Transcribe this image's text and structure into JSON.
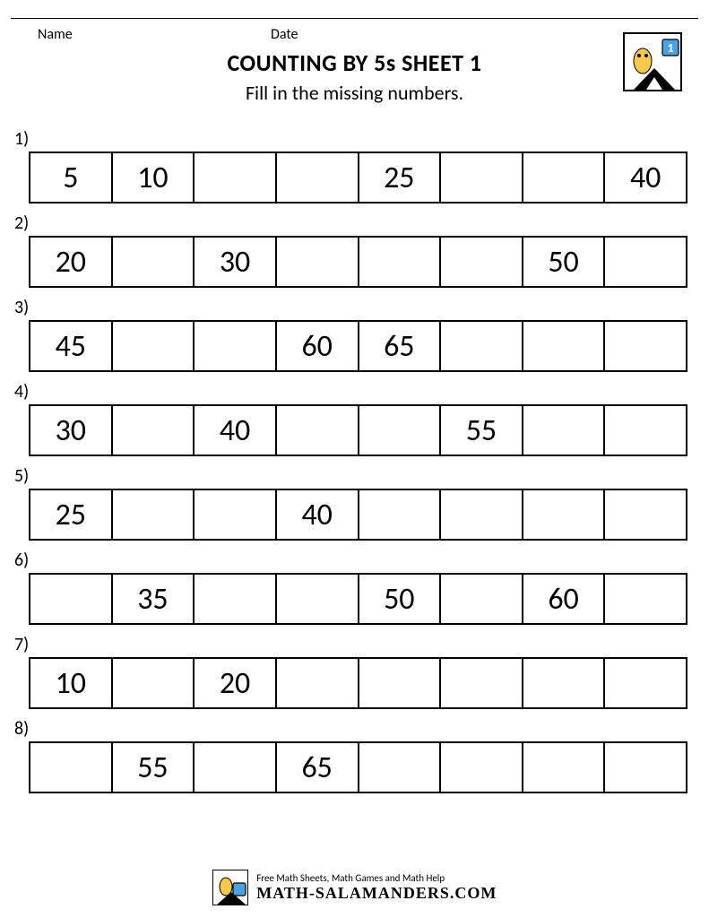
{
  "header": {
    "name_label": "Name",
    "date_label": "Date",
    "title": "COUNTING BY 5s SHEET 1",
    "instructions": "Fill in the missing numbers.",
    "grade_badge": "1"
  },
  "worksheet": {
    "cells_per_row": 8,
    "cell_border_color": "#000000",
    "cell_background": "#ffffff",
    "number_fontsize": 34,
    "label_fontsize": 20,
    "rows": [
      {
        "label": "1)",
        "cells": [
          "5",
          "10",
          "",
          "",
          "25",
          "",
          "",
          "40"
        ]
      },
      {
        "label": "2)",
        "cells": [
          "20",
          "",
          "30",
          "",
          "",
          "",
          "50",
          ""
        ]
      },
      {
        "label": "3)",
        "cells": [
          "45",
          "",
          "",
          "60",
          "65",
          "",
          "",
          ""
        ]
      },
      {
        "label": "4)",
        "cells": [
          "30",
          "",
          "40",
          "",
          "",
          "55",
          "",
          ""
        ]
      },
      {
        "label": "5)",
        "cells": [
          "25",
          "",
          "",
          "40",
          "",
          "",
          "",
          ""
        ]
      },
      {
        "label": "6)",
        "cells": [
          "",
          "35",
          "",
          "",
          "50",
          "",
          "60",
          ""
        ]
      },
      {
        "label": "7)",
        "cells": [
          "10",
          "",
          "20",
          "",
          "",
          "",
          "",
          ""
        ]
      },
      {
        "label": "8)",
        "cells": [
          "",
          "55",
          "",
          "65",
          "",
          "",
          "",
          ""
        ]
      }
    ]
  },
  "footer": {
    "tagline": "Free Math Sheets, Math Games and Math Help",
    "site": "MATH-SALAMANDERS.COM"
  },
  "colors": {
    "page_background": "#ffffff",
    "border": "#000000",
    "logo_yellow": "#f7c948",
    "logo_blue": "#4aa3e0"
  }
}
